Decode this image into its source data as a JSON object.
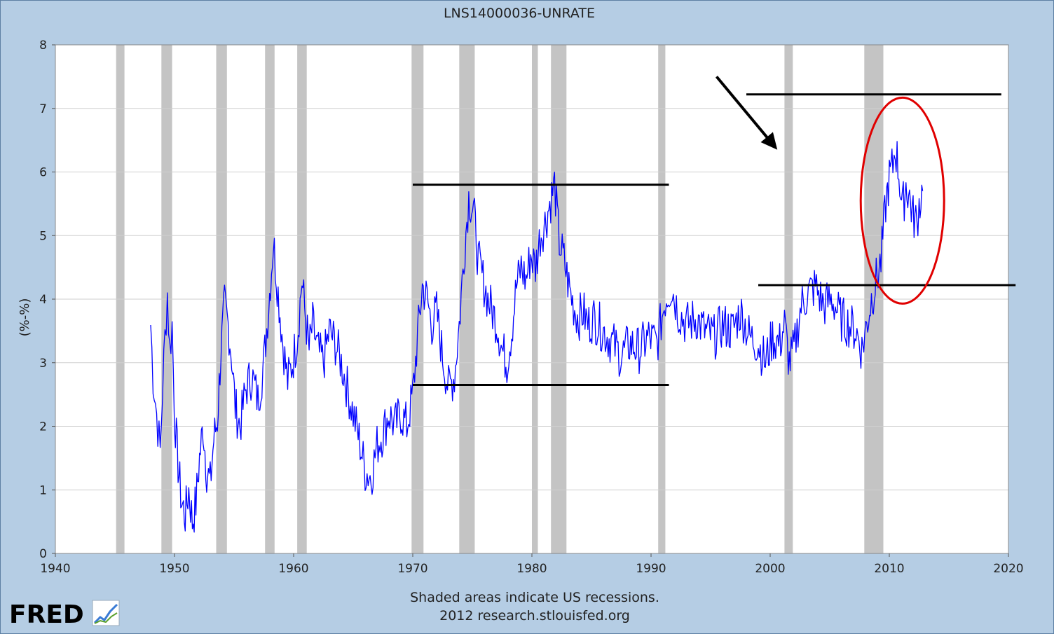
{
  "chart_data": {
    "type": "line",
    "title": "LNS14000036-UNRATE",
    "ylabel": "(%-%)",
    "xlim": [
      1940,
      2020
    ],
    "ylim": [
      0,
      8
    ],
    "x_ticks": [
      "1940",
      "1950",
      "1960",
      "1970",
      "1980",
      "1990",
      "2000",
      "2010",
      "2020"
    ],
    "y_ticks": [
      "0",
      "1",
      "2",
      "3",
      "4",
      "5",
      "6",
      "7",
      "8"
    ],
    "grid": true,
    "series": [
      {
        "color": "#0000ff",
        "x": [
          1948.0,
          1948.2,
          1948.4,
          1948.6,
          1948.8,
          1949.0,
          1949.2,
          1949.4,
          1949.6,
          1949.8,
          1950.0,
          1950.3,
          1950.6,
          1950.9,
          1951.2,
          1951.5,
          1951.8,
          1952.1,
          1952.4,
          1952.7,
          1953.0,
          1953.3,
          1953.6,
          1953.9,
          1954.2,
          1954.5,
          1954.8,
          1955.1,
          1955.5,
          1956.0,
          1956.5,
          1957.0,
          1957.5,
          1957.9,
          1958.3,
          1958.7,
          1959.1,
          1959.5,
          1959.9,
          1960.3,
          1960.7,
          1961.0,
          1961.3,
          1961.6,
          1962.0,
          1962.5,
          1963.0,
          1963.5,
          1964.0,
          1964.5,
          1965.0,
          1965.5,
          1966.0,
          1966.5,
          1967.0,
          1967.5,
          1968.0,
          1968.5,
          1969.0,
          1969.5,
          1970.0,
          1970.4,
          1970.8,
          1971.2,
          1971.6,
          1972.0,
          1972.5,
          1973.0,
          1973.5,
          1973.9,
          1974.3,
          1974.7,
          1975.1,
          1975.5,
          1975.9,
          1976.3,
          1976.7,
          1977.1,
          1977.5,
          1977.9,
          1978.3,
          1978.7,
          1979.1,
          1979.5,
          1979.9,
          1980.3,
          1980.7,
          1981.1,
          1981.5,
          1981.9,
          1982.3,
          1982.7,
          1983.1,
          1983.5,
          1983.9,
          1984.3,
          1984.7,
          1985.2,
          1986.0,
          1986.8,
          1987.5,
          1988.2,
          1989.0,
          1989.8,
          1990.5,
          1991.2,
          1991.7,
          1992.3,
          1993.0,
          1993.8,
          1994.5,
          1995.3,
          1996.0,
          1996.8,
          1997.5,
          1998.3,
          1999.0,
          1999.6,
          2000.2,
          2000.8,
          2001.2,
          2001.6,
          2002.0,
          2002.6,
          2003.2,
          2003.8,
          2004.5,
          2005.2,
          2005.9,
          2006.6,
          2007.2,
          2007.7,
          2008.1,
          2008.5,
          2008.9,
          2009.3,
          2009.7,
          2010.0,
          2010.3,
          2010.5,
          2010.8,
          2011.1,
          2011.4,
          2011.7,
          2012.0,
          2012.3,
          2012.5,
          2012.8
        ],
        "y": [
          3.6,
          2.8,
          2.4,
          2.0,
          1.6,
          2.6,
          3.4,
          4.1,
          3.2,
          3.6,
          2.2,
          1.4,
          0.8,
          0.6,
          1.0,
          0.5,
          0.8,
          1.5,
          2.0,
          1.3,
          1.1,
          1.8,
          2.1,
          3.2,
          3.9,
          3.6,
          3.1,
          2.3,
          2.0,
          2.6,
          2.8,
          2.4,
          3.0,
          3.9,
          4.9,
          4.1,
          3.3,
          2.7,
          3.0,
          3.4,
          4.3,
          3.7,
          3.2,
          3.6,
          3.2,
          3.0,
          3.5,
          3.3,
          3.0,
          2.6,
          2.2,
          1.8,
          1.3,
          1.2,
          1.7,
          1.9,
          2.2,
          2.0,
          2.2,
          2.0,
          2.5,
          3.4,
          4.2,
          4.0,
          3.6,
          3.8,
          3.1,
          2.6,
          2.8,
          3.6,
          4.7,
          5.6,
          5.4,
          4.6,
          4.3,
          4.0,
          3.8,
          3.6,
          3.2,
          3.0,
          3.5,
          4.2,
          4.5,
          4.3,
          4.7,
          4.5,
          5.0,
          5.2,
          5.5,
          5.8,
          4.9,
          4.6,
          4.2,
          3.9,
          3.7,
          3.8,
          3.6,
          3.7,
          3.5,
          3.3,
          3.1,
          3.3,
          3.2,
          3.4,
          3.3,
          4.0,
          4.2,
          3.8,
          3.6,
          3.7,
          3.5,
          3.4,
          3.6,
          3.5,
          3.8,
          3.4,
          3.3,
          3.0,
          3.4,
          3.3,
          3.6,
          3.0,
          3.2,
          3.9,
          4.1,
          4.2,
          3.9,
          4.0,
          3.7,
          3.6,
          3.5,
          3.2,
          3.6,
          4.0,
          4.3,
          4.6,
          5.5,
          5.9,
          6.1,
          6.4,
          6.0,
          5.4,
          5.8,
          5.6,
          5.3,
          5.2,
          5.5,
          5.7
        ]
      }
    ],
    "recessions": [
      [
        1945.1,
        1945.8
      ],
      [
        1948.9,
        1949.8
      ],
      [
        1953.5,
        1954.4
      ],
      [
        1957.6,
        1958.4
      ],
      [
        1960.3,
        1961.1
      ],
      [
        1969.9,
        1970.9
      ],
      [
        1973.9,
        1975.2
      ],
      [
        1980.0,
        1980.5
      ],
      [
        1981.6,
        1982.9
      ],
      [
        1990.6,
        1991.2
      ],
      [
        2001.2,
        2001.9
      ],
      [
        2007.9,
        2009.5
      ]
    ],
    "annotations": {
      "line_color": "#000000",
      "circle_color": "#e00000",
      "hlines": [
        {
          "y": 5.8,
          "x1": 1970.0,
          "x2": 1991.5
        },
        {
          "y": 2.65,
          "x1": 1970.0,
          "x2": 1991.5
        },
        {
          "y": 7.22,
          "x1": 1998.0,
          "x2": 2019.4
        },
        {
          "y": 4.22,
          "x1": 1999.0,
          "x2": 2020.6
        }
      ],
      "ellipse": {
        "cx": 2011.1,
        "cy": 5.55,
        "rx": 3.5,
        "ry": 1.62
      },
      "arrow": {
        "x1": 1995.5,
        "y1": 7.5,
        "x2": 2000.6,
        "y2": 6.35
      }
    },
    "footer": [
      "Shaded areas indicate US recessions.",
      "2012 research.stlouisfed.org"
    ],
    "logo_text": "FRED"
  }
}
